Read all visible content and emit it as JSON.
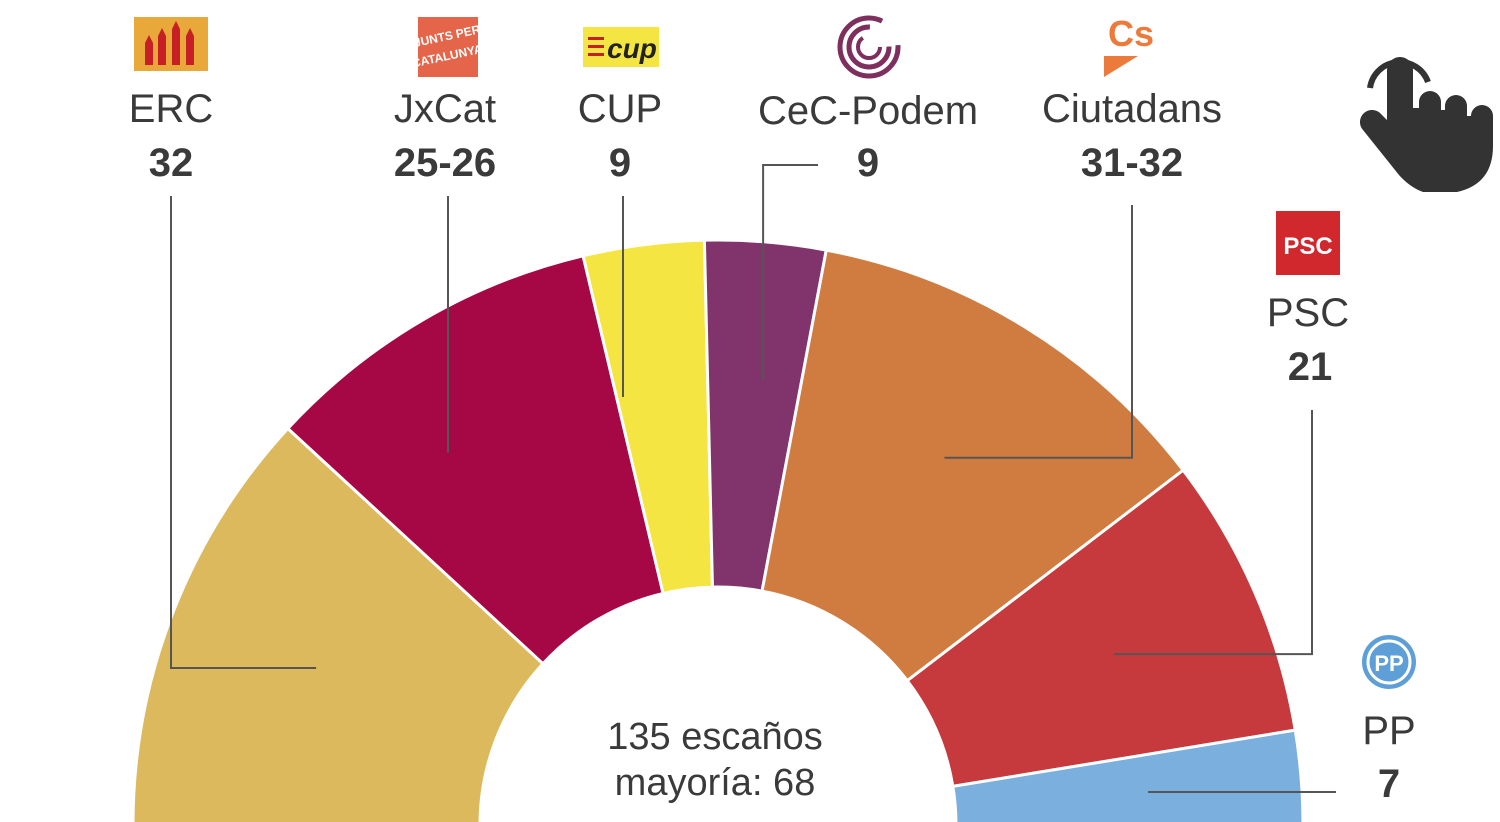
{
  "chart_data": {
    "type": "pie",
    "total_label": "135 escaños",
    "majority_label": "mayoría: 68",
    "total_seats": 135,
    "majority": 68,
    "parties": [
      {
        "id": "erc",
        "name": "ERC",
        "seats_label": "32",
        "seats": 32,
        "color": "#DDB95E",
        "logo_icon": "erc-logo-icon",
        "logo_color": "#E8A83A"
      },
      {
        "id": "jxcat",
        "name": "JxCat",
        "seats_label": "25-26",
        "seats": 25.5,
        "color": "#A50844",
        "logo_icon": "jxcat-logo-icon",
        "logo_color": "#E5654A",
        "logo_text_top": "JUNTS PER",
        "logo_text_bottom": "CATALUNYA"
      },
      {
        "id": "cup",
        "name": "CUP",
        "seats_label": "9",
        "seats": 9,
        "color": "#F4E542",
        "logo_icon": "cup-logo-icon",
        "logo_color": "#F4E542",
        "logo_text": "cup"
      },
      {
        "id": "cec",
        "name": "CeC-Podem",
        "seats_label": "9",
        "seats": 9,
        "color": "#80346B",
        "logo_icon": "cec-podem-logo-icon",
        "logo_color": "#7E2F5E"
      },
      {
        "id": "cs",
        "name": "Ciutadans",
        "seats_label": "31-32",
        "seats": 31.5,
        "color": "#D07C40",
        "logo_icon": "ciutadans-logo-icon",
        "logo_color": "#EC7A3A",
        "logo_text": "Cs"
      },
      {
        "id": "psc",
        "name": "PSC",
        "seats_label": "21",
        "seats": 21,
        "color": "#C6393D",
        "logo_icon": "psc-logo-icon",
        "logo_color": "#D1282E",
        "logo_text": "PSC"
      },
      {
        "id": "pp",
        "name": "PP",
        "seats_label": "7",
        "seats": 7,
        "color": "#7BAFDE",
        "logo_icon": "pp-logo-icon",
        "logo_color": "#5F9FD8",
        "logo_text": "PP"
      }
    ]
  },
  "ui": {
    "tap_icon": "hand-pointer-icon",
    "tap_icon_color": "#333333"
  }
}
